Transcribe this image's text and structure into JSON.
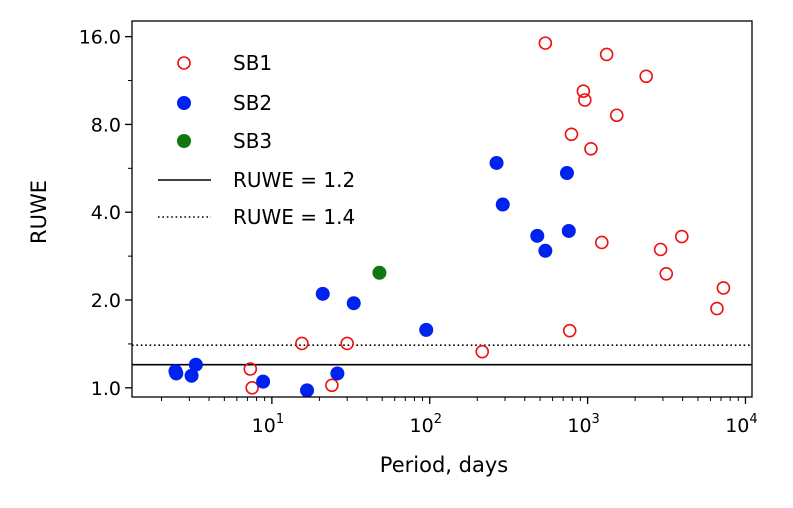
{
  "chart_data": {
    "type": "scatter",
    "xlabel": "Period, days",
    "ylabel": "RUWE",
    "xscale": "log",
    "yscale": "log",
    "xlim": [
      1.3,
      11000
    ],
    "ylim": [
      0.93,
      18.1
    ],
    "x_ticks": [
      {
        "value": 10,
        "base": "10",
        "exp": "1"
      },
      {
        "value": 100,
        "base": "10",
        "exp": "2"
      },
      {
        "value": 1000,
        "base": "10",
        "exp": "3"
      },
      {
        "value": 10000,
        "base": "10",
        "exp": "4"
      }
    ],
    "y_ticks": [
      {
        "value": 1.0,
        "label": "1.0"
      },
      {
        "value": 2.0,
        "label": "2.0"
      },
      {
        "value": 4.0,
        "label": "4.0"
      },
      {
        "value": 8.0,
        "label": "8.0"
      },
      {
        "value": 16.0,
        "label": "16.0"
      }
    ],
    "legend_position": "top-left",
    "series": [
      {
        "name": "SB1",
        "marker": "open-circle",
        "color": "#ee1111",
        "points": [
          [
            7.3,
            1.16
          ],
          [
            7.5,
            1.0
          ],
          [
            15.5,
            1.42
          ],
          [
            24,
            1.02
          ],
          [
            30,
            1.42
          ],
          [
            215,
            1.33
          ],
          [
            540,
            15.2
          ],
          [
            770,
            1.57
          ],
          [
            790,
            7.4
          ],
          [
            940,
            10.4
          ],
          [
            960,
            9.7
          ],
          [
            1050,
            6.6
          ],
          [
            1230,
            3.15
          ],
          [
            1320,
            13.9
          ],
          [
            1530,
            8.6
          ],
          [
            2350,
            11.7
          ],
          [
            2900,
            2.98
          ],
          [
            3150,
            2.46
          ],
          [
            3950,
            3.3
          ],
          [
            6600,
            1.87
          ],
          [
            7250,
            2.2
          ]
        ]
      },
      {
        "name": "SB2",
        "marker": "filled-circle",
        "color": "#0022ee",
        "points": [
          [
            2.45,
            1.14
          ],
          [
            2.48,
            1.12
          ],
          [
            3.1,
            1.1
          ],
          [
            3.3,
            1.2
          ],
          [
            8.8,
            1.05
          ],
          [
            16.7,
            0.98
          ],
          [
            21,
            2.1
          ],
          [
            26,
            1.12
          ],
          [
            33,
            1.95
          ],
          [
            95,
            1.58
          ],
          [
            265,
            5.9
          ],
          [
            290,
            4.25
          ],
          [
            480,
            3.32
          ],
          [
            540,
            2.95
          ],
          [
            740,
            5.45
          ],
          [
            760,
            3.45
          ]
        ]
      },
      {
        "name": "SB3",
        "marker": "filled-circle",
        "color": "#117711",
        "points": [
          [
            48,
            2.48
          ]
        ]
      }
    ],
    "reference_lines": [
      {
        "name": "RUWE = 1.2",
        "value": 1.2,
        "style": "solid",
        "color": "#000000"
      },
      {
        "name": "RUWE = 1.4",
        "value": 1.4,
        "style": "dotted",
        "color": "#000000"
      }
    ]
  }
}
